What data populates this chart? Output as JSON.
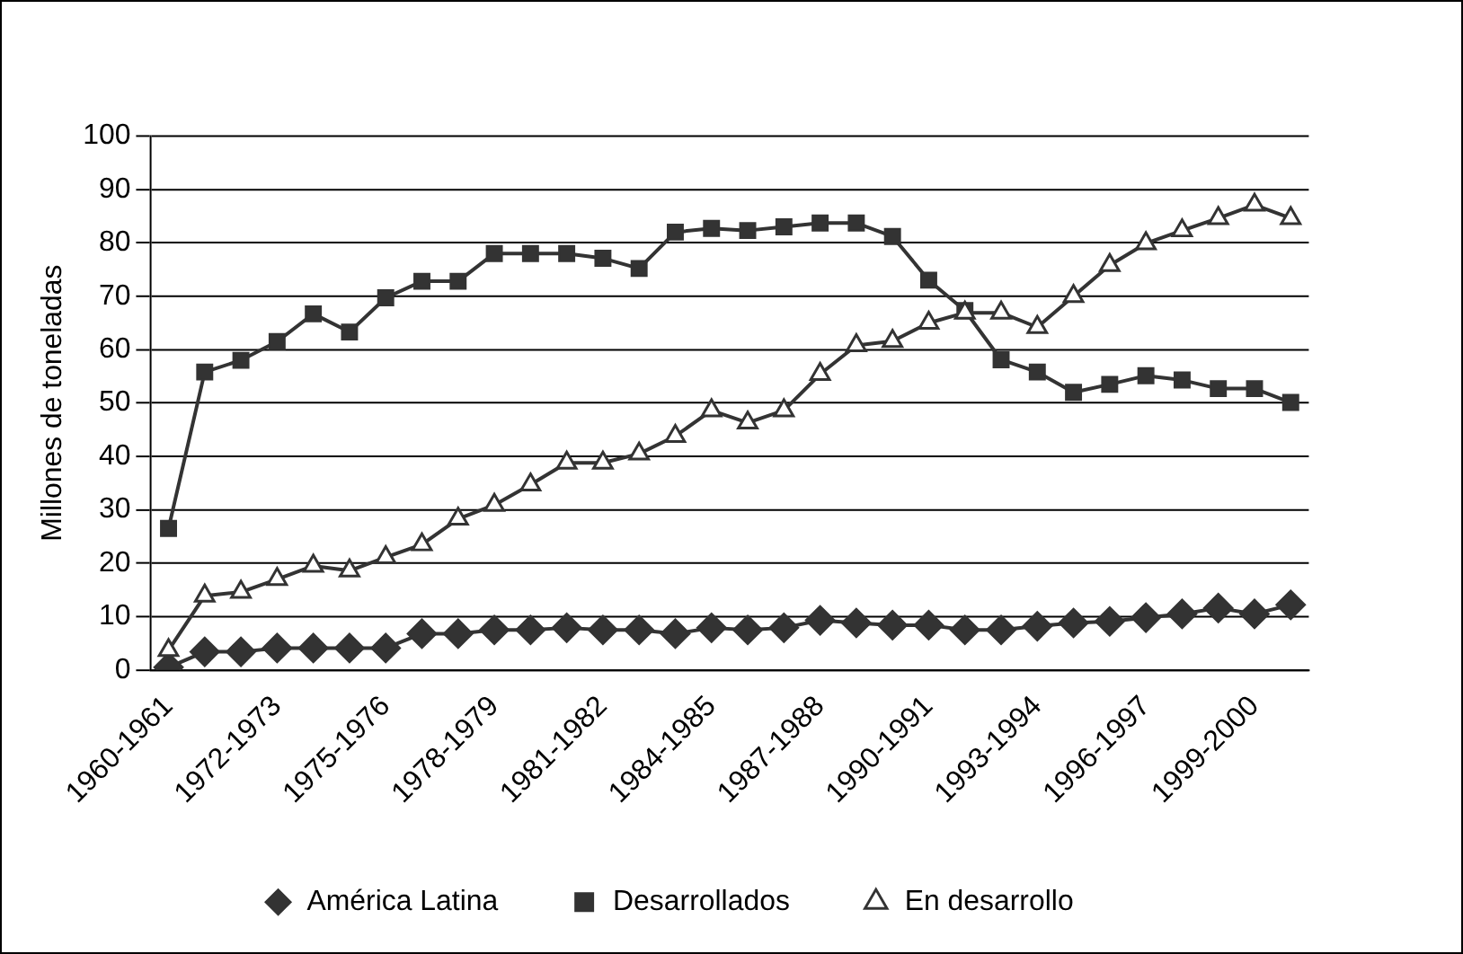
{
  "chart_data": {
    "type": "line",
    "ylabel": "Millones de toneladas",
    "categories": [
      "1960-1961",
      null,
      null,
      "1972-1973",
      null,
      null,
      "1975-1976",
      null,
      null,
      "1978-1979",
      null,
      null,
      "1981-1982",
      null,
      null,
      "1984-1985",
      null,
      null,
      "1987-1988",
      null,
      null,
      "1990-1991",
      null,
      null,
      "1993-1994",
      null,
      null,
      "1996-1997",
      null,
      null,
      "1999-2000",
      null
    ],
    "series": [
      {
        "name": "América Latina",
        "color": "#333333",
        "marker": "diamond",
        "values": [
          0.5,
          3.4,
          3.4,
          4.1,
          4.1,
          4.1,
          4.1,
          6.8,
          6.8,
          7.5,
          7.5,
          7.9,
          7.5,
          7.5,
          6.8,
          7.9,
          7.5,
          7.9,
          9.3,
          8.8,
          8.4,
          8.4,
          7.5,
          7.5,
          8.2,
          8.8,
          9.1,
          9.8,
          10.5,
          11.6,
          10.5,
          12.2
        ]
      },
      {
        "name": "Desarrollados",
        "color": "#333333",
        "marker": "square",
        "values": [
          26.5,
          55.8,
          58,
          61.5,
          66.7,
          63.3,
          69.7,
          72.8,
          72.8,
          78,
          78,
          78,
          77.1,
          75.2,
          82,
          82.7,
          82.3,
          83,
          83.7,
          83.7,
          81.2,
          73,
          67.3,
          58.1,
          55.8,
          52,
          53.5,
          55.1,
          54.3,
          52.7,
          52.7,
          50.1
        ]
      },
      {
        "name": "En desarrollo",
        "color": "#333333",
        "marker": "triangle",
        "values": [
          3.7,
          13.9,
          14.6,
          17,
          19.5,
          18.6,
          21.1,
          23.5,
          28.3,
          30.9,
          34.7,
          38.8,
          38.8,
          40.5,
          43.8,
          48.6,
          46.3,
          48.6,
          55.4,
          60.8,
          61.6,
          65,
          66.9,
          66.9,
          64.2,
          70,
          75.8,
          79.9,
          82.3,
          84.6,
          87.1,
          84.6
        ]
      }
    ],
    "ylim": [
      0,
      100
    ],
    "yticks": [
      0,
      10,
      20,
      30,
      40,
      50,
      60,
      70,
      80,
      90,
      100
    ],
    "grid": "y",
    "legend": "bottom",
    "line_style": "solid"
  }
}
